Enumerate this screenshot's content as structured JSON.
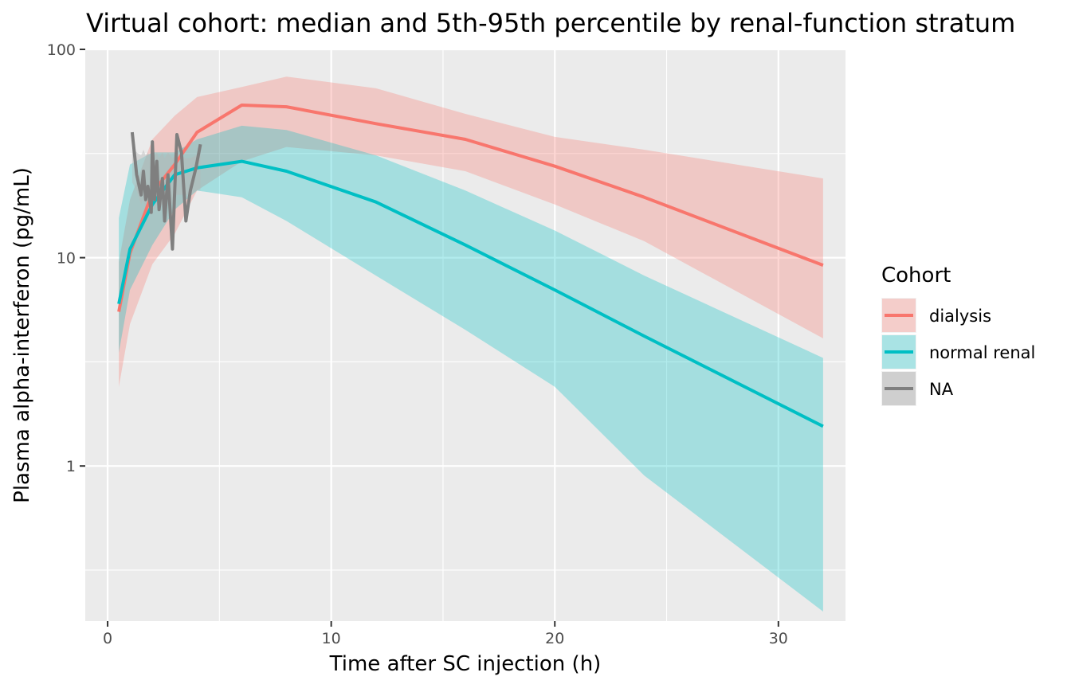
{
  "chart_data": {
    "type": "line",
    "title": "Virtual cohort: median and 5th-95th percentile by renal-function stratum",
    "xlabel": "Time after SC injection (h)",
    "ylabel": "Plasma alpha-interferon (pg/mL)",
    "x_scale": "linear",
    "y_scale": "log10",
    "xlim": [
      -1,
      33
    ],
    "ylim": [
      0.18,
      100
    ],
    "x_ticks": [
      0,
      10,
      20,
      30
    ],
    "x_tick_labels": [
      "0",
      "10",
      "20",
      "30"
    ],
    "y_ticks": [
      1,
      10,
      100
    ],
    "y_tick_labels": [
      "1",
      "10",
      "100"
    ],
    "grid": true,
    "legend": {
      "title": "Cohort",
      "position": "right",
      "entries": [
        "dialysis",
        "normal renal",
        "NA"
      ]
    },
    "series": [
      {
        "name": "dialysis",
        "color": "#F8766D",
        "x": [
          0.5,
          1,
          2,
          3,
          4,
          6,
          8,
          12,
          16,
          20,
          24,
          32
        ],
        "median": [
          5.5,
          10.5,
          20.5,
          28,
          40,
          54,
          53,
          44,
          37,
          27.5,
          19.5,
          9.2
        ],
        "lower": [
          2.4,
          4.8,
          9.3,
          13,
          21,
          29,
          34,
          31,
          26,
          18,
          12,
          4.1
        ],
        "upper": [
          9.5,
          19,
          37,
          48,
          59,
          66,
          74,
          65,
          49,
          38,
          33,
          24
        ]
      },
      {
        "name": "normal renal",
        "color": "#00BFC4",
        "x": [
          0.5,
          1,
          2,
          3,
          4,
          6,
          8,
          12,
          16,
          20,
          24,
          32
        ],
        "median": [
          6,
          11,
          18,
          25,
          27,
          29,
          26,
          18.5,
          11.5,
          7,
          4.2,
          1.55
        ],
        "lower": [
          3.5,
          7,
          11.5,
          17,
          21,
          19.5,
          15,
          8.2,
          4.5,
          2.4,
          0.9,
          0.2
        ],
        "upper": [
          15.5,
          28,
          32,
          32,
          37,
          43,
          41,
          31,
          21,
          13.5,
          8.2,
          3.3
        ]
      },
      {
        "name": "NA",
        "color": "#7F7F7F",
        "x": [
          1.1,
          1.3,
          1.5,
          1.6,
          1.7,
          1.8,
          1.95,
          2.0,
          2.1,
          2.2,
          2.3,
          2.45,
          2.55,
          2.7,
          2.9,
          3.1,
          3.3,
          3.5,
          3.7,
          3.95,
          4.15
        ],
        "values": [
          40,
          25,
          20,
          26,
          19,
          22,
          16.5,
          36,
          19,
          29,
          17,
          24,
          15,
          25,
          11,
          39,
          32,
          15,
          21,
          27,
          35
        ],
        "lower": [
          23,
          21,
          18,
          19,
          17,
          18,
          16,
          17,
          17,
          18,
          17,
          18,
          17,
          19,
          18,
          20,
          20,
          20,
          20,
          21,
          21
        ],
        "upper": [
          34,
          32,
          31,
          33,
          31,
          32,
          30,
          34,
          31,
          32,
          30,
          32,
          30,
          32,
          30,
          32,
          31,
          30,
          30,
          31,
          32
        ]
      }
    ]
  }
}
